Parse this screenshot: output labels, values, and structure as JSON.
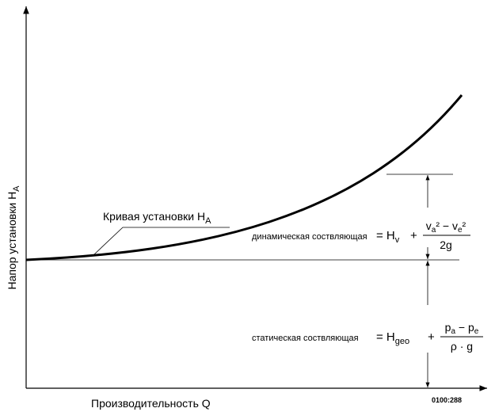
{
  "y_axis_label": {
    "text": "Напор установки H",
    "sub": "A"
  },
  "x_axis_label": {
    "text": "Производительность Q"
  },
  "curve_label": {
    "text": "Кривая установки H",
    "sub": "A"
  },
  "dynamic": {
    "label": "динамическая соствляющая",
    "symbol": "= H",
    "sub": "v",
    "plus": "+",
    "numerator": [
      "v",
      "a",
      "² − v",
      "e",
      "²"
    ],
    "denominator": "2g"
  },
  "static": {
    "label": "статическая соствляющая",
    "symbol": "= H",
    "sub": "geo",
    "plus": "+",
    "numerator": [
      "p",
      "a",
      " − p",
      "e"
    ],
    "denominator": "ρ · g"
  },
  "figure_code": "0100:288"
}
